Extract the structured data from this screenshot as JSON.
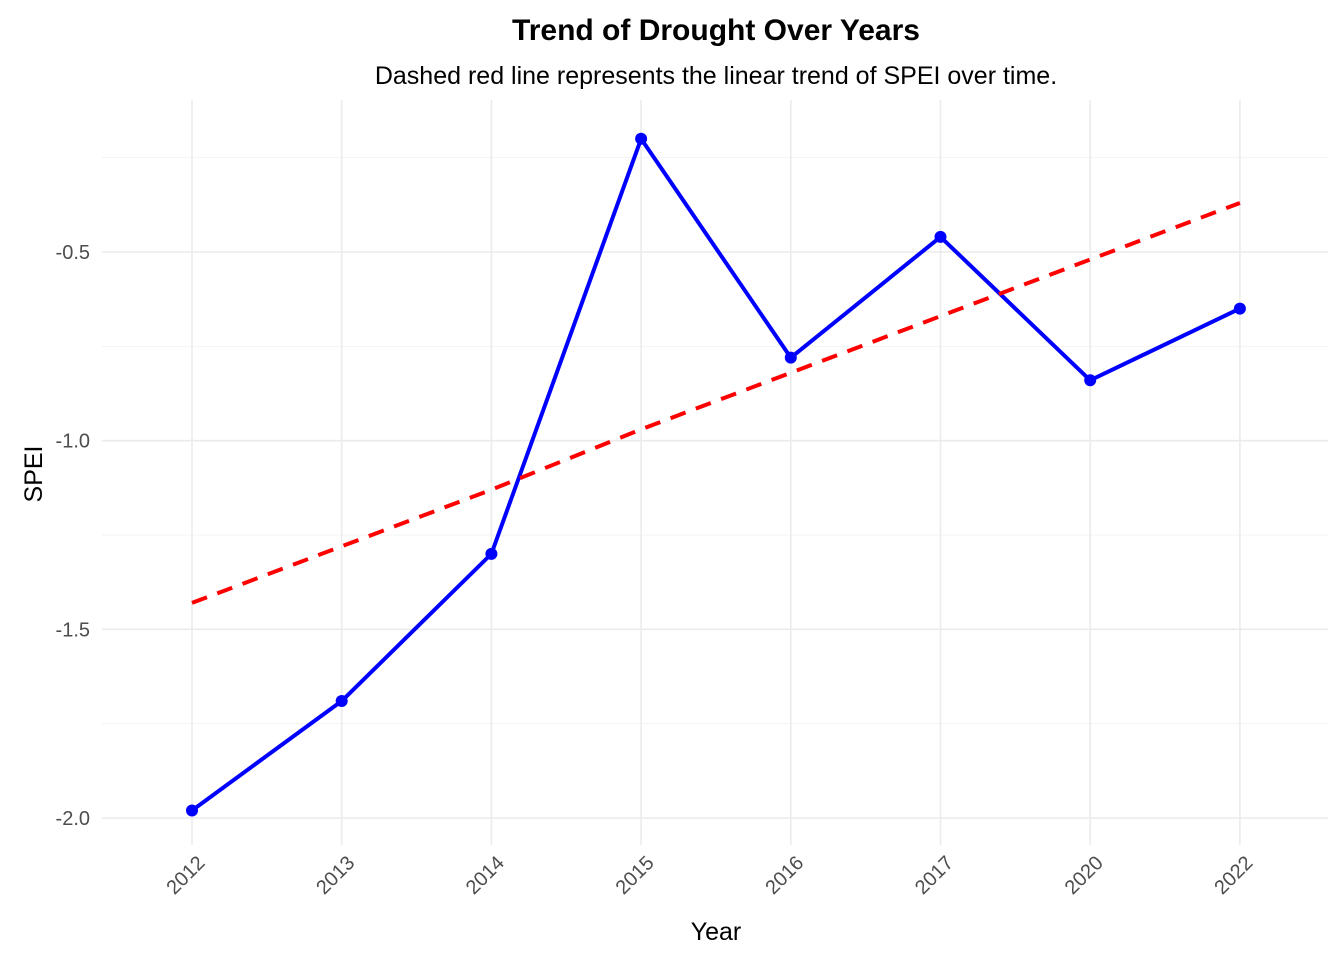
{
  "chart_data": {
    "type": "line",
    "title": "Trend of Drought Over Years",
    "subtitle": "Dashed red line represents the linear trend of SPEI over time.",
    "xlabel": "Year",
    "ylabel": "SPEI",
    "categories": [
      "2012",
      "2013",
      "2014",
      "2015",
      "2016",
      "2017",
      "2020",
      "2022"
    ],
    "series": [
      {
        "values": [
          -1.98,
          -1.69,
          -1.3,
          -0.2,
          -0.78,
          -0.46,
          -0.84,
          -0.65
        ],
        "color": "#0000ff",
        "style": "solid-with-points"
      },
      {
        "values": [
          -1.43,
          -1.28,
          -1.13,
          -0.97,
          -0.82,
          -0.67,
          -0.52,
          -0.37
        ],
        "color": "#ff0000",
        "style": "dashed"
      }
    ],
    "yticks": [
      -2.0,
      -1.5,
      -1.0,
      -0.5
    ],
    "ytick_labels": [
      "-2.0",
      "-1.5",
      "-1.0",
      "-0.5"
    ],
    "ylim": [
      -2.07,
      -0.15
    ],
    "grid": true,
    "legend": "none"
  }
}
